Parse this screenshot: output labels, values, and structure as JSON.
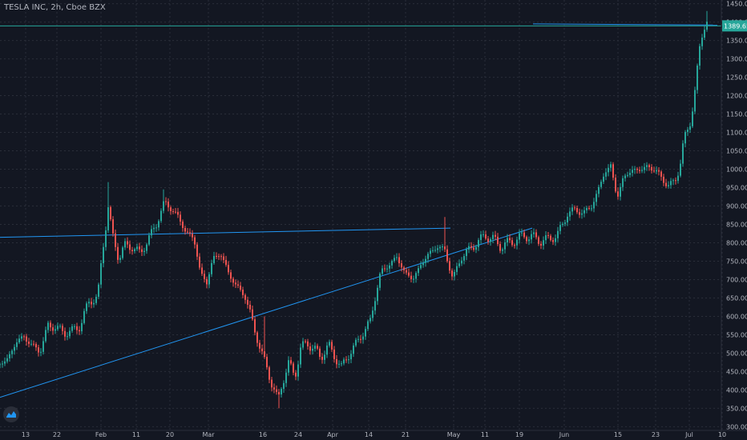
{
  "title": "TESLA INC, 2h, Cboe BZX",
  "colors": {
    "background": "#131722",
    "grid": "#2a2e39",
    "up": "#26a69a",
    "down": "#ef5350",
    "trendline": "#2196f3",
    "hline": "#26a69a",
    "axis_text": "#b2b5be",
    "price_badge": "#26a69a"
  },
  "logo_icon": "tradingview-logo-icon",
  "chart_data": {
    "type": "candlestick",
    "title": "TESLA INC, 2h, Cboe BZX",
    "ylim": [
      290,
      1460
    ],
    "y_ticks": [
      300,
      350,
      400,
      450,
      500,
      550,
      600,
      650,
      700,
      750,
      800,
      850,
      900,
      950,
      1000,
      1050,
      1100,
      1150,
      1200,
      1250,
      1300,
      1350,
      1400,
      1450
    ],
    "x_ticks": [
      "13",
      "22",
      "Feb",
      "11",
      "20",
      "Mar",
      "16",
      "24",
      "Apr",
      "14",
      "21",
      "May",
      "11",
      "19",
      "Jun",
      "15",
      "23",
      "Jul",
      "10"
    ],
    "grid": true,
    "last_price": "1389.65",
    "anchors": [
      {
        "t": 0,
        "p": 470
      },
      {
        "t": 10,
        "p": 485
      },
      {
        "t": 20,
        "p": 530
      },
      {
        "t": 30,
        "p": 545
      },
      {
        "t": 40,
        "p": 520
      },
      {
        "t": 50,
        "p": 505
      },
      {
        "t": 60,
        "p": 575
      },
      {
        "t": 70,
        "p": 570
      },
      {
        "t": 80,
        "p": 555
      },
      {
        "t": 90,
        "p": 560
      },
      {
        "t": 100,
        "p": 575
      },
      {
        "t": 112,
        "p": 645
      },
      {
        "t": 122,
        "p": 650
      },
      {
        "t": 128,
        "p": 780
      },
      {
        "t": 135,
        "p": 900
      },
      {
        "t": 140,
        "p": 820
      },
      {
        "t": 148,
        "p": 760
      },
      {
        "t": 155,
        "p": 790
      },
      {
        "t": 165,
        "p": 790
      },
      {
        "t": 175,
        "p": 770
      },
      {
        "t": 185,
        "p": 810
      },
      {
        "t": 195,
        "p": 850
      },
      {
        "t": 205,
        "p": 910
      },
      {
        "t": 215,
        "p": 890
      },
      {
        "t": 222,
        "p": 870
      },
      {
        "t": 232,
        "p": 830
      },
      {
        "t": 242,
        "p": 810
      },
      {
        "t": 250,
        "p": 720
      },
      {
        "t": 258,
        "p": 690
      },
      {
        "t": 266,
        "p": 760
      },
      {
        "t": 275,
        "p": 770
      },
      {
        "t": 285,
        "p": 720
      },
      {
        "t": 295,
        "p": 680
      },
      {
        "t": 305,
        "p": 660
      },
      {
        "t": 312,
        "p": 610
      },
      {
        "t": 318,
        "p": 560
      },
      {
        "t": 325,
        "p": 510
      },
      {
        "t": 333,
        "p": 460
      },
      {
        "t": 340,
        "p": 410
      },
      {
        "t": 347,
        "p": 370
      },
      {
        "t": 352,
        "p": 420
      },
      {
        "t": 360,
        "p": 470
      },
      {
        "t": 368,
        "p": 440
      },
      {
        "t": 375,
        "p": 510
      },
      {
        "t": 383,
        "p": 530
      },
      {
        "t": 392,
        "p": 510
      },
      {
        "t": 400,
        "p": 490
      },
      {
        "t": 410,
        "p": 520
      },
      {
        "t": 418,
        "p": 490
      },
      {
        "t": 426,
        "p": 460
      },
      {
        "t": 433,
        "p": 490
      },
      {
        "t": 440,
        "p": 510
      },
      {
        "t": 448,
        "p": 540
      },
      {
        "t": 455,
        "p": 560
      },
      {
        "t": 462,
        "p": 590
      },
      {
        "t": 468,
        "p": 650
      },
      {
        "t": 475,
        "p": 720
      },
      {
        "t": 485,
        "p": 740
      },
      {
        "t": 495,
        "p": 760
      },
      {
        "t": 505,
        "p": 720
      },
      {
        "t": 515,
        "p": 700
      },
      {
        "t": 525,
        "p": 740
      },
      {
        "t": 535,
        "p": 770
      },
      {
        "t": 545,
        "p": 790
      },
      {
        "t": 555,
        "p": 780
      },
      {
        "t": 565,
        "p": 700
      },
      {
        "t": 575,
        "p": 760
      },
      {
        "t": 585,
        "p": 780
      },
      {
        "t": 595,
        "p": 800
      },
      {
        "t": 605,
        "p": 820
      },
      {
        "t": 615,
        "p": 810
      },
      {
        "t": 625,
        "p": 790
      },
      {
        "t": 635,
        "p": 800
      },
      {
        "t": 645,
        "p": 810
      },
      {
        "t": 655,
        "p": 820
      },
      {
        "t": 665,
        "p": 815
      },
      {
        "t": 675,
        "p": 805
      },
      {
        "t": 685,
        "p": 810
      },
      {
        "t": 695,
        "p": 820
      },
      {
        "t": 702,
        "p": 850
      },
      {
        "t": 708,
        "p": 880
      },
      {
        "t": 718,
        "p": 890
      },
      {
        "t": 728,
        "p": 880
      },
      {
        "t": 738,
        "p": 900
      },
      {
        "t": 746,
        "p": 940
      },
      {
        "t": 754,
        "p": 990
      },
      {
        "t": 762,
        "p": 1010
      },
      {
        "t": 770,
        "p": 920
      },
      {
        "t": 778,
        "p": 980
      },
      {
        "t": 788,
        "p": 995
      },
      {
        "t": 798,
        "p": 1000
      },
      {
        "t": 808,
        "p": 1005
      },
      {
        "t": 818,
        "p": 1000
      },
      {
        "t": 826,
        "p": 970
      },
      {
        "t": 834,
        "p": 960
      },
      {
        "t": 842,
        "p": 960
      },
      {
        "t": 848,
        "p": 1010
      },
      {
        "t": 853,
        "p": 1080
      },
      {
        "t": 860,
        "p": 1110
      },
      {
        "t": 866,
        "p": 1200
      },
      {
        "t": 870,
        "p": 1270
      },
      {
        "t": 874,
        "p": 1340
      },
      {
        "t": 878,
        "p": 1380
      },
      {
        "t": 881,
        "p": 1420
      },
      {
        "t": 884,
        "p": 1390
      }
    ],
    "spikes": [
      {
        "t": 135,
        "p": 965
      },
      {
        "t": 205,
        "p": 945
      },
      {
        "t": 555,
        "p": 870
      },
      {
        "t": 330,
        "p": 600
      },
      {
        "t": 347,
        "p": 350
      },
      {
        "t": 881,
        "p": 1430
      }
    ],
    "trendlines": [
      {
        "name": "resistance",
        "from": {
          "t": 0,
          "p": 815
        },
        "to": {
          "t": 562,
          "p": 840
        }
      },
      {
        "name": "support",
        "from": {
          "t": 0,
          "p": 380
        },
        "to": {
          "t": 664,
          "p": 840
        }
      },
      {
        "name": "top-ray",
        "from": {
          "t": 665,
          "p": 1395
        },
        "to": {
          "t": 895,
          "p": 1392
        }
      }
    ],
    "hline": {
      "p": 1389.65
    }
  }
}
